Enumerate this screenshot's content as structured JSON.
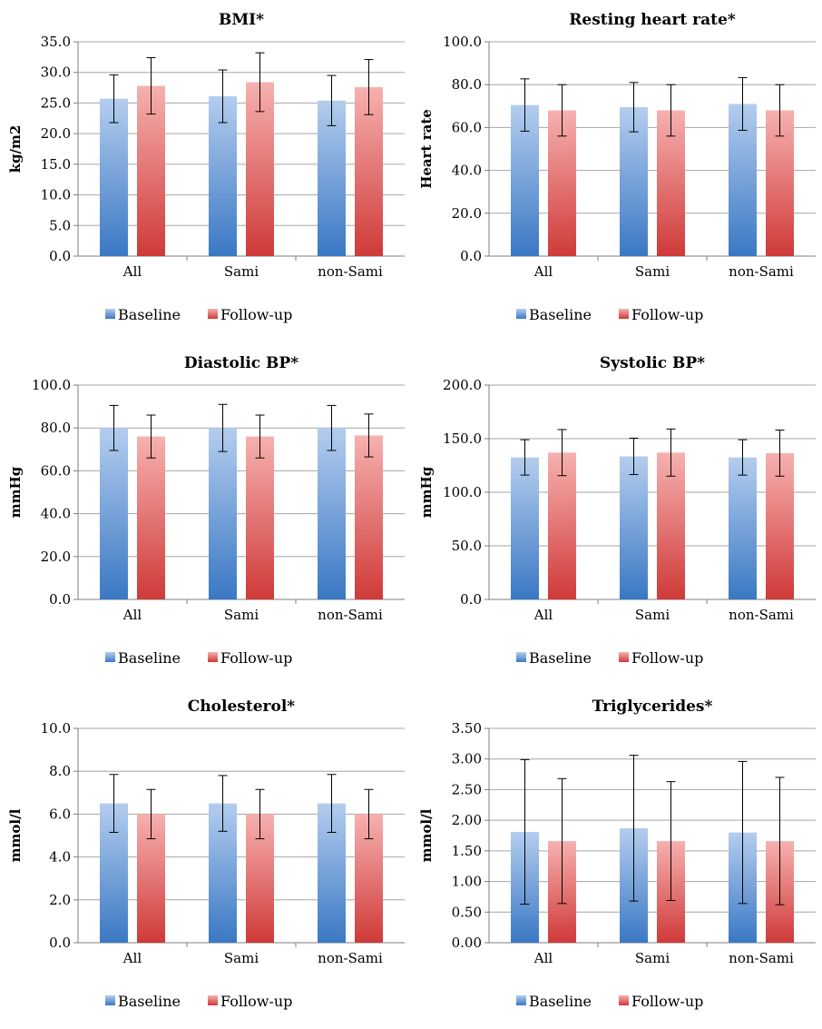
{
  "colors": {
    "baseline_top": "#b4cdee",
    "baseline_bottom": "#3a78c4",
    "followup_top": "#f6b1b0",
    "followup_bottom": "#cf3a38"
  },
  "legend": [
    "Baseline",
    "Follow-up"
  ],
  "chart_data": [
    {
      "type": "bar",
      "title": "BMI*",
      "ylabel": "kg/m2",
      "categories": [
        "All",
        "Sami",
        "non-Sami"
      ],
      "ylim": [
        0,
        35
      ],
      "yticks": [
        "0.0",
        "5.0",
        "10.0",
        "15.0",
        "20.0",
        "25.0",
        "30.0",
        "35.0"
      ],
      "legend_position": "bottom",
      "series": [
        {
          "name": "Baseline",
          "values": [
            25.7,
            26.1,
            25.4
          ],
          "err": [
            3.9,
            4.3,
            4.1
          ]
        },
        {
          "name": "Follow-up",
          "values": [
            27.8,
            28.4,
            27.6
          ],
          "err": [
            4.6,
            4.8,
            4.5
          ]
        }
      ]
    },
    {
      "type": "bar",
      "title": "Resting heart rate*",
      "ylabel": "Heart rate",
      "categories": [
        "All",
        "Sami",
        "non-Sami"
      ],
      "ylim": [
        0,
        100
      ],
      "yticks": [
        "0.0",
        "20.0",
        "40.0",
        "60.0",
        "80.0",
        "100.0"
      ],
      "legend_position": "bottom",
      "series": [
        {
          "name": "Baseline",
          "values": [
            70.5,
            69.5,
            71.0
          ],
          "err": [
            12.2,
            11.5,
            12.3
          ]
        },
        {
          "name": "Follow-up",
          "values": [
            68.0,
            68.0,
            68.0
          ],
          "err": [
            12.0,
            12.0,
            12.0
          ]
        }
      ]
    },
    {
      "type": "bar",
      "title": "Diastolic BP*",
      "ylabel": "mmHg",
      "categories": [
        "All",
        "Sami",
        "non-Sami"
      ],
      "ylim": [
        0,
        100
      ],
      "yticks": [
        "0.0",
        "20.0",
        "40.0",
        "60.0",
        "80.0",
        "100.0"
      ],
      "legend_position": "bottom",
      "series": [
        {
          "name": "Baseline",
          "values": [
            80.0,
            80.0,
            80.0
          ],
          "err": [
            10.5,
            11.0,
            10.5
          ]
        },
        {
          "name": "Follow-up",
          "values": [
            76.0,
            76.0,
            76.5
          ],
          "err": [
            10.0,
            10.0,
            10.0
          ]
        }
      ]
    },
    {
      "type": "bar",
      "title": "Systolic BP*",
      "ylabel": "mmHg",
      "categories": [
        "All",
        "Sami",
        "non-Sami"
      ],
      "ylim": [
        0,
        200
      ],
      "yticks": [
        "0.0",
        "50.0",
        "100.0",
        "150.0",
        "200.0"
      ],
      "legend_position": "bottom",
      "series": [
        {
          "name": "Baseline",
          "values": [
            132.5,
            133.5,
            132.5
          ],
          "err": [
            16.5,
            17.0,
            16.5
          ]
        },
        {
          "name": "Follow-up",
          "values": [
            137.0,
            137.0,
            136.5
          ],
          "err": [
            21.5,
            22.0,
            21.5
          ]
        }
      ]
    },
    {
      "type": "bar",
      "title": "Cholesterol*",
      "ylabel": "mmol/l",
      "categories": [
        "All",
        "Sami",
        "non-Sami"
      ],
      "ylim": [
        0,
        10
      ],
      "yticks": [
        "0.0",
        "2.0",
        "4.0",
        "6.0",
        "8.0",
        "10.0"
      ],
      "legend_position": "bottom",
      "series": [
        {
          "name": "Baseline",
          "values": [
            6.5,
            6.5,
            6.5
          ],
          "err": [
            1.35,
            1.3,
            1.35
          ]
        },
        {
          "name": "Follow-up",
          "values": [
            6.0,
            6.0,
            6.0
          ],
          "err": [
            1.15,
            1.15,
            1.15
          ]
        }
      ]
    },
    {
      "type": "bar",
      "title": "Triglycerides*",
      "ylabel": "mmol/l",
      "categories": [
        "All",
        "Sami",
        "non-Sami"
      ],
      "ylim": [
        0,
        3.5
      ],
      "yticks": [
        "0.00",
        "0.50",
        "1.00",
        "1.50",
        "2.00",
        "2.50",
        "3.00",
        "3.50"
      ],
      "legend_position": "bottom",
      "series": [
        {
          "name": "Baseline",
          "values": [
            1.81,
            1.87,
            1.8
          ],
          "err": [
            1.18,
            1.19,
            1.16
          ]
        },
        {
          "name": "Follow-up",
          "values": [
            1.66,
            1.66,
            1.66
          ],
          "err": [
            1.02,
            0.97,
            1.04
          ]
        }
      ]
    }
  ]
}
